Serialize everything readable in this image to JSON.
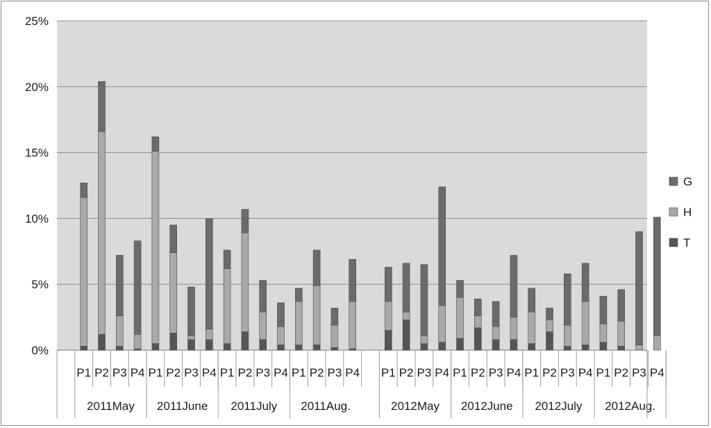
{
  "chart_data": {
    "type": "bar",
    "stacked": true,
    "y_ticks": [
      "0%",
      "5%",
      "10%",
      "15%",
      "20%",
      "25%"
    ],
    "ylim": [
      0,
      25
    ],
    "grid": true,
    "legend_position": "right",
    "groups": [
      {
        "label": "2011May",
        "categories": [
          "P1",
          "P2",
          "P3",
          "P4"
        ]
      },
      {
        "label": "2011June",
        "categories": [
          "P1",
          "P2",
          "P3",
          "P4"
        ]
      },
      {
        "label": "2011July",
        "categories": [
          "P1",
          "P2",
          "P3",
          "P4"
        ]
      },
      {
        "label": "2011Aug.",
        "categories": [
          "P1",
          "P2",
          "P3",
          "P4"
        ]
      },
      {
        "label": "2012May",
        "categories": [
          "P1",
          "P2",
          "P3",
          "P4"
        ]
      },
      {
        "label": "2012June",
        "categories": [
          "P1",
          "P2",
          "P3",
          "P4"
        ]
      },
      {
        "label": "2012July",
        "categories": [
          "P1",
          "P2",
          "P3",
          "P4"
        ]
      },
      {
        "label": "2012Aug.",
        "categories": [
          "P1",
          "P2",
          "P3",
          "P4"
        ]
      }
    ],
    "series": [
      {
        "name": "T",
        "color": "#555555",
        "values": [
          0.3,
          1.2,
          0.3,
          0.1,
          0.5,
          1.3,
          0.8,
          0.8,
          0.5,
          1.4,
          0.8,
          0.4,
          0.4,
          0.4,
          0.2,
          0.1,
          1.5,
          2.3,
          0.5,
          0.6,
          0.9,
          1.7,
          0.8,
          0.8,
          0.5,
          1.4,
          0.3,
          0.4,
          0.6,
          0.3,
          0.0,
          0.0
        ]
      },
      {
        "name": "H",
        "color": "#a9a9a9",
        "values": [
          11.3,
          15.4,
          2.3,
          1.1,
          14.6,
          6.1,
          0.3,
          0.8,
          5.7,
          7.5,
          2.1,
          1.4,
          3.3,
          4.5,
          1.7,
          3.6,
          2.2,
          0.6,
          0.6,
          2.8,
          3.1,
          0.9,
          1.0,
          1.7,
          2.4,
          0.9,
          1.6,
          3.3,
          1.4,
          1.9,
          0.4,
          1.1
        ]
      },
      {
        "name": "G",
        "color": "#6b6b6b",
        "values": [
          1.1,
          3.8,
          4.6,
          7.1,
          1.1,
          2.1,
          3.7,
          8.4,
          1.4,
          1.8,
          2.4,
          1.8,
          1.0,
          2.7,
          1.3,
          3.2,
          2.6,
          3.7,
          5.4,
          9.0,
          1.3,
          1.3,
          1.9,
          4.7,
          1.8,
          0.9,
          3.9,
          2.9,
          2.1,
          2.4,
          8.6,
          9.0
        ]
      }
    ]
  }
}
